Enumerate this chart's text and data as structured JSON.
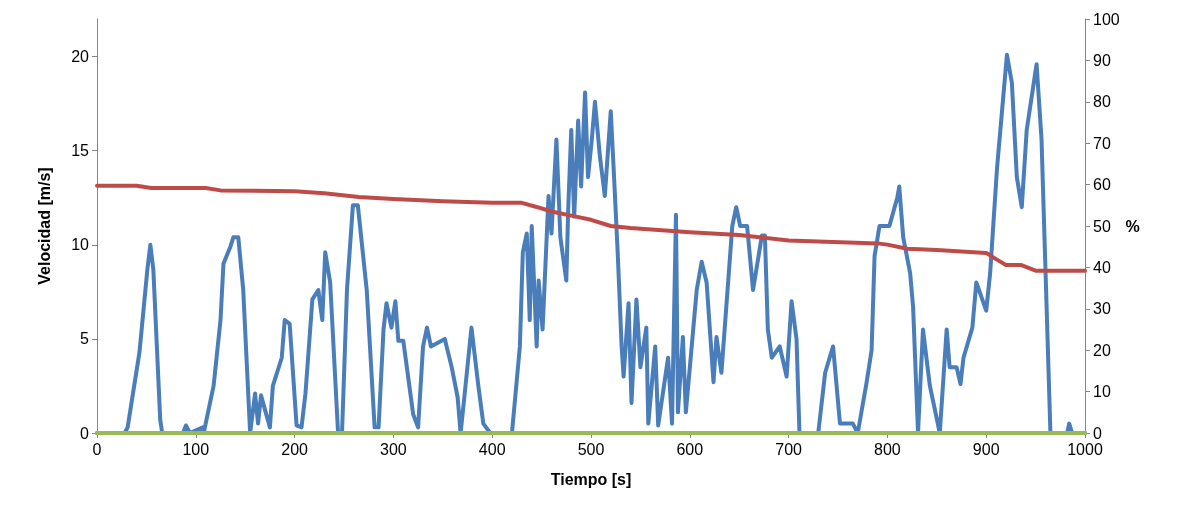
{
  "chart_data": {
    "type": "line",
    "xlabel": "Tiempo [s]",
    "ylabel": "Velocidad [m/s]",
    "y2label": "%",
    "xlim": [
      0,
      1000
    ],
    "xticks": [
      0,
      100,
      200,
      300,
      400,
      500,
      600,
      700,
      800,
      900,
      1000
    ],
    "ylim": [
      0,
      22
    ],
    "yticks": [
      0,
      5,
      10,
      15,
      20
    ],
    "y2lim": [
      0,
      100
    ],
    "y2ticks": [
      0,
      10,
      20,
      30,
      40,
      50,
      60,
      70,
      80,
      90,
      100
    ],
    "grid": false,
    "marker": "none",
    "line_style": "solid",
    "series": [
      {
        "color": "#4a7ebb",
        "x": [
          0,
          28,
          31,
          43,
          51,
          54,
          57,
          64,
          66,
          87,
          90,
          94,
          107,
          108,
          118,
          125,
          128,
          135,
          138,
          143,
          148,
          155,
          160,
          163,
          166,
          175,
          178,
          187,
          190,
          195,
          202,
          207,
          211,
          218,
          224,
          228,
          231,
          236,
          244,
          248,
          253,
          259,
          264,
          273,
          281,
          285,
          290,
          293,
          298,
          302,
          305,
          310,
          320,
          325,
          330,
          334,
          338,
          352,
          359,
          365,
          368,
          372,
          379,
          386,
          391,
          398,
          420,
          428,
          431,
          435,
          438,
          440,
          445,
          447,
          451,
          457,
          460,
          465,
          469,
          475,
          477,
          480,
          483,
          487,
          490,
          494,
          497,
          501,
          504,
          509,
          514,
          520,
          524,
          527,
          531,
          533,
          538,
          541,
          546,
          550,
          556,
          558,
          565,
          568,
          578,
          582,
          586,
          588,
          593,
          596,
          607,
          612,
          617,
          624,
          627,
          632,
          643,
          647,
          651,
          658,
          664,
          673,
          676,
          679,
          683,
          691,
          698,
          703,
          708,
          711,
          730,
          737,
          745,
          752,
          765,
          770,
          779,
          784,
          787,
          792,
          802,
          810,
          812,
          816,
          823,
          826,
          831,
          836,
          843,
          853,
          860,
          863,
          870,
          874,
          877,
          886,
          890,
          900,
          904,
          911,
          921,
          926,
          931,
          936,
          941,
          951,
          956,
          965,
          982,
          984,
          987,
          1000
        ],
        "values": [
          0,
          0,
          0.3,
          4.3,
          8.7,
          10,
          8.7,
          0.7,
          0,
          0,
          0.4,
          0,
          0.3,
          0,
          2.5,
          6,
          9,
          9.9,
          10.4,
          10.4,
          7.6,
          0,
          2.1,
          0.5,
          2,
          0.3,
          2.5,
          4,
          6,
          5.8,
          0.4,
          0.3,
          2.1,
          7.1,
          7.6,
          6,
          9.6,
          8,
          0,
          0,
          7.6,
          12.1,
          12.1,
          7.6,
          0.3,
          0.3,
          5.5,
          6.9,
          5.6,
          7,
          4.9,
          4.9,
          1,
          0.3,
          4.6,
          5.6,
          4.6,
          5,
          3.5,
          1.9,
          0,
          2,
          5.6,
          2.5,
          0.5,
          0,
          0,
          4.6,
          9.6,
          10.6,
          6,
          11,
          4.6,
          8.1,
          5.5,
          12.6,
          10.6,
          15.6,
          10.4,
          8.1,
          12,
          16.1,
          11.5,
          16.6,
          13.1,
          18.1,
          13.6,
          15.7,
          17.6,
          14.7,
          12.6,
          17.1,
          12.9,
          9.6,
          4.6,
          3,
          6.9,
          1.6,
          7.1,
          3.5,
          5.6,
          0.5,
          4.6,
          0.4,
          4,
          0.5,
          11.6,
          1.1,
          5.1,
          1.1,
          7.6,
          9.1,
          8,
          2.7,
          5.1,
          3.2,
          11,
          12,
          11,
          11,
          7.6,
          10.5,
          10.5,
          5.5,
          4,
          4.6,
          3,
          7,
          5,
          0,
          0,
          3.2,
          4.6,
          0.5,
          0.5,
          0,
          2.7,
          4.4,
          9.4,
          11,
          11,
          12.5,
          13.1,
          10.4,
          8.5,
          6.7,
          0,
          5.5,
          2.5,
          0,
          5.5,
          3.5,
          3.5,
          2.6,
          4,
          5.6,
          8,
          6.5,
          8.5,
          14.1,
          20.1,
          18.6,
          13.6,
          12,
          16.1,
          19.6,
          15.6,
          0,
          0,
          0.5,
          0,
          0
        ]
      },
      {
        "color": "#be4b48",
        "axis": "y2",
        "x": [
          0,
          40,
          55,
          110,
          125,
          200,
          230,
          265,
          300,
          350,
          400,
          430,
          445,
          460,
          480,
          500,
          520,
          540,
          600,
          650,
          700,
          760,
          790,
          800,
          820,
          850,
          900,
          910,
          920,
          935,
          950,
          1000
        ],
        "values": [
          59.7,
          59.7,
          59.2,
          59.2,
          58.6,
          58.4,
          57.9,
          57.0,
          56.5,
          56.0,
          55.6,
          55.6,
          54.6,
          53.5,
          52.5,
          51.5,
          50.0,
          49.5,
          48.5,
          47.8,
          46.5,
          46.0,
          45.8,
          45.5,
          44.5,
          44.2,
          43.5,
          42.0,
          40.6,
          40.6,
          39.2,
          39.2
        ]
      },
      {
        "color": "#98b954",
        "x": [
          0,
          1000
        ],
        "values": [
          0,
          0
        ]
      }
    ]
  }
}
